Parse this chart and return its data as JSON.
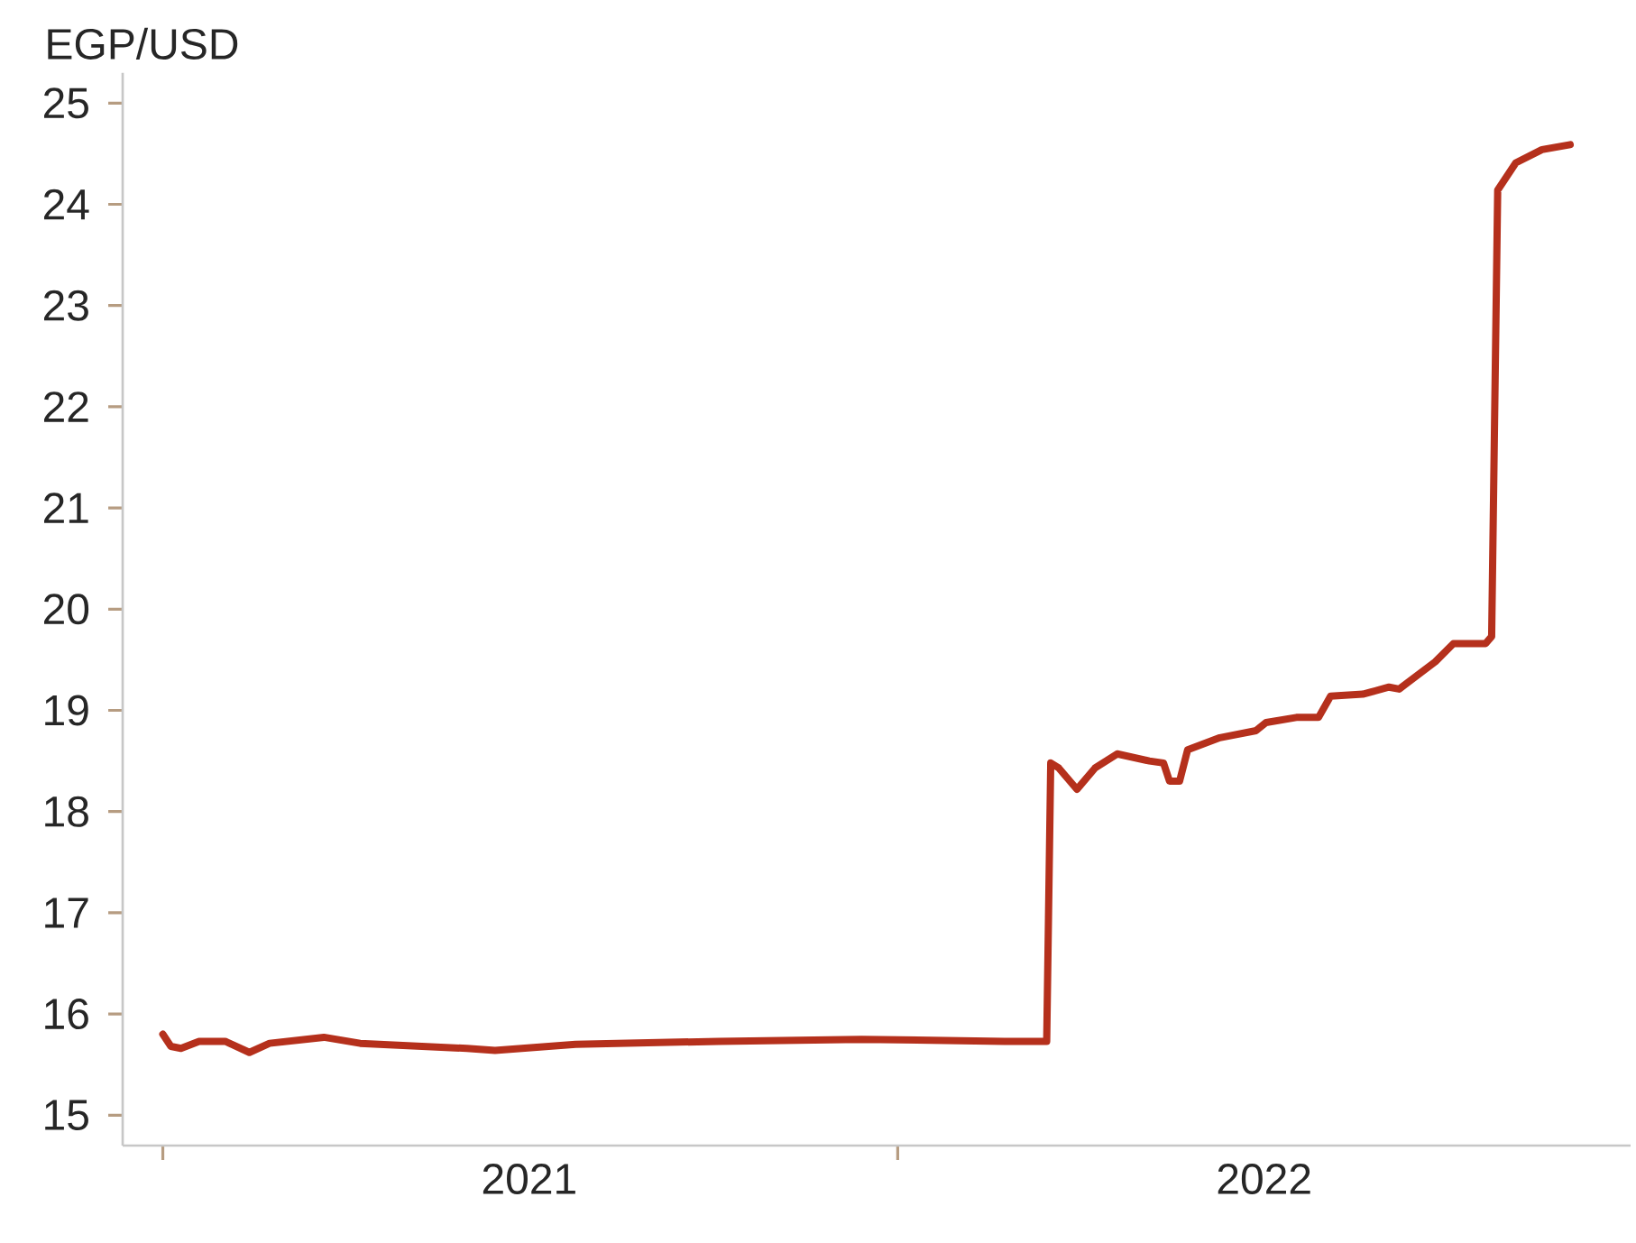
{
  "chart_data": {
    "type": "line",
    "ylabel": "EGP/USD",
    "x": [
      "2021-01-01",
      "2021-01-05",
      "2021-01-10",
      "2021-01-19",
      "2021-02-01",
      "2021-02-13",
      "2021-02-23",
      "2021-03-22",
      "2021-04-09",
      "2021-06-01",
      "2021-06-15",
      "2021-07-25",
      "2021-10-04",
      "2021-12-14",
      "2022-02-23",
      "2022-03-16",
      "2022-03-18",
      "2022-03-22",
      "2022-03-31",
      "2022-04-09",
      "2022-04-20",
      "2022-05-06",
      "2022-05-13",
      "2022-05-16",
      "2022-05-21",
      "2022-05-25",
      "2022-06-10",
      "2022-06-28",
      "2022-07-03",
      "2022-07-18",
      "2022-07-29",
      "2022-08-04",
      "2022-08-20",
      "2022-09-02",
      "2022-09-07",
      "2022-09-25",
      "2022-10-04",
      "2022-10-20",
      "2022-10-23",
      "2022-10-26",
      "2022-11-04",
      "2022-11-17",
      "2022-12-01"
    ],
    "series": [
      {
        "color": "#b5301c",
        "values": [
          15.8,
          15.68,
          15.66,
          15.73,
          15.73,
          15.62,
          15.71,
          15.77,
          15.71,
          15.66,
          15.64,
          15.7,
          15.73,
          15.75,
          15.73,
          15.73,
          18.48,
          18.43,
          18.22,
          18.43,
          18.57,
          18.5,
          18.48,
          18.3,
          18.3,
          18.61,
          18.73,
          18.8,
          18.88,
          18.93,
          18.93,
          19.14,
          19.16,
          19.23,
          19.21,
          19.48,
          19.66,
          19.66,
          19.73,
          24.14,
          24.41,
          24.54,
          24.59
        ]
      }
    ],
    "xlim": [
      "2020-12-12",
      "2022-12-31"
    ],
    "ylim": [
      14.7,
      25.3
    ],
    "xticks": [
      {
        "value": "2021-01-01",
        "label": null
      },
      {
        "value": "2021-07-02",
        "label": "2021"
      },
      {
        "value": "2022-01-01",
        "label": null
      },
      {
        "value": "2022-07-02",
        "label": "2022"
      }
    ],
    "yticks": [
      15,
      16,
      17,
      18,
      19,
      20,
      21,
      22,
      23,
      24,
      25
    ]
  }
}
